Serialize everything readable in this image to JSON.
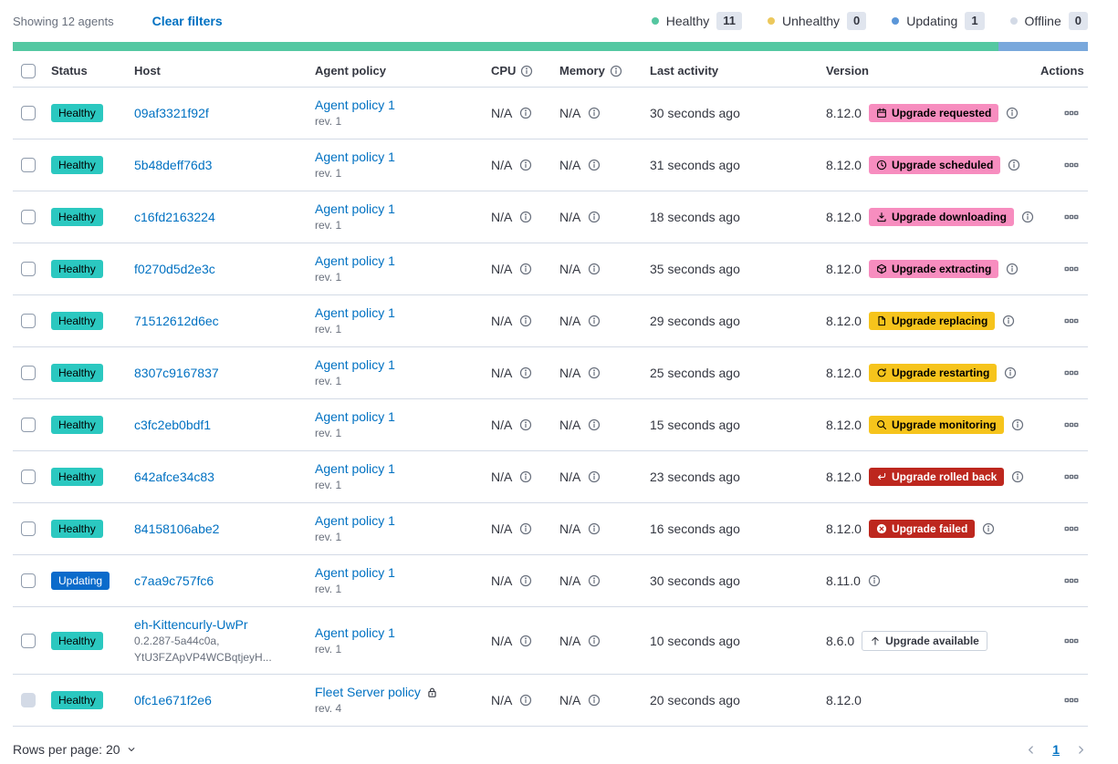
{
  "colors": {
    "link": "#0071C2",
    "text": "#343741",
    "subdued": "#69707D",
    "border": "#D3DAE6",
    "status": {
      "healthy": "#2BC8C0",
      "updating": "#0B6BCB"
    },
    "status_text": {
      "healthy": "#000000",
      "updating": "#FFFFFF"
    },
    "upgrade": {
      "pink": "#F78DBF",
      "yellow": "#F6C41C",
      "red": "#BD271E",
      "hollow": "#FFFFFF"
    },
    "upgrade_text": {
      "pink": "#000000",
      "yellow": "#000000",
      "red": "#FFFFFF",
      "hollow": "#343741"
    },
    "bar": {
      "healthy": "#54C8A2",
      "updating": "#79A8DC"
    },
    "dots": {
      "healthy": "#55C6A0",
      "unhealthy": "#ECC85C",
      "updating": "#5B96D8",
      "offline": "#D3DAE6"
    },
    "count_badge_bg": "#E0E5EE"
  },
  "toolbar": {
    "showing": "Showing 12 agents",
    "clear_filters": "Clear filters"
  },
  "legend": [
    {
      "label": "Healthy",
      "count": "11",
      "dot": "healthy"
    },
    {
      "label": "Unhealthy",
      "count": "0",
      "dot": "unhealthy"
    },
    {
      "label": "Updating",
      "count": "1",
      "dot": "updating"
    },
    {
      "label": "Offline",
      "count": "0",
      "dot": "offline"
    }
  ],
  "health_bar": [
    {
      "name": "healthy",
      "count": 11
    },
    {
      "name": "updating",
      "count": 1
    }
  ],
  "table": {
    "headers": {
      "status": "Status",
      "host": "Host",
      "policy": "Agent policy",
      "cpu": "CPU",
      "memory": "Memory",
      "last_activity": "Last activity",
      "version": "Version",
      "actions": "Actions"
    },
    "rows": [
      {
        "status": {
          "label": "Healthy",
          "type": "healthy"
        },
        "host": "09af3321f92f",
        "host_sub": [],
        "policy": "Agent policy 1",
        "rev": "rev. 1",
        "policy_locked": false,
        "cpu": "N/A",
        "memory": "N/A",
        "last_activity": "30 seconds ago",
        "version": "8.12.0",
        "upgrade": {
          "label": "Upgrade requested",
          "type": "pink",
          "icon": "calendar"
        },
        "upgrade_info": true,
        "version_info": false,
        "checkbox_disabled": false,
        "tall": false
      },
      {
        "status": {
          "label": "Healthy",
          "type": "healthy"
        },
        "host": "5b48deff76d3",
        "host_sub": [],
        "policy": "Agent policy 1",
        "rev": "rev. 1",
        "policy_locked": false,
        "cpu": "N/A",
        "memory": "N/A",
        "last_activity": "31 seconds ago",
        "version": "8.12.0",
        "upgrade": {
          "label": "Upgrade scheduled",
          "type": "pink",
          "icon": "clock"
        },
        "upgrade_info": true,
        "version_info": false,
        "checkbox_disabled": false,
        "tall": false
      },
      {
        "status": {
          "label": "Healthy",
          "type": "healthy"
        },
        "host": "c16fd2163224",
        "host_sub": [],
        "policy": "Agent policy 1",
        "rev": "rev. 1",
        "policy_locked": false,
        "cpu": "N/A",
        "memory": "N/A",
        "last_activity": "18 seconds ago",
        "version": "8.12.0",
        "upgrade": {
          "label": "Upgrade downloading",
          "type": "pink",
          "icon": "download"
        },
        "upgrade_info": true,
        "version_info": false,
        "checkbox_disabled": false,
        "tall": false
      },
      {
        "status": {
          "label": "Healthy",
          "type": "healthy"
        },
        "host": "f0270d5d2e3c",
        "host_sub": [],
        "policy": "Agent policy 1",
        "rev": "rev. 1",
        "policy_locked": false,
        "cpu": "N/A",
        "memory": "N/A",
        "last_activity": "35 seconds ago",
        "version": "8.12.0",
        "upgrade": {
          "label": "Upgrade extracting",
          "type": "pink",
          "icon": "package"
        },
        "upgrade_info": true,
        "version_info": false,
        "checkbox_disabled": false,
        "tall": false
      },
      {
        "status": {
          "label": "Healthy",
          "type": "healthy"
        },
        "host": "71512612d6ec",
        "host_sub": [],
        "policy": "Agent policy 1",
        "rev": "rev. 1",
        "policy_locked": false,
        "cpu": "N/A",
        "memory": "N/A",
        "last_activity": "29 seconds ago",
        "version": "8.12.0",
        "upgrade": {
          "label": "Upgrade replacing",
          "type": "yellow",
          "icon": "document"
        },
        "upgrade_info": true,
        "version_info": false,
        "checkbox_disabled": false,
        "tall": false
      },
      {
        "status": {
          "label": "Healthy",
          "type": "healthy"
        },
        "host": "8307c9167837",
        "host_sub": [],
        "policy": "Agent policy 1",
        "rev": "rev. 1",
        "policy_locked": false,
        "cpu": "N/A",
        "memory": "N/A",
        "last_activity": "25 seconds ago",
        "version": "8.12.0",
        "upgrade": {
          "label": "Upgrade restarting",
          "type": "yellow",
          "icon": "refresh"
        },
        "upgrade_info": true,
        "version_info": false,
        "checkbox_disabled": false,
        "tall": false
      },
      {
        "status": {
          "label": "Healthy",
          "type": "healthy"
        },
        "host": "c3fc2eb0bdf1",
        "host_sub": [],
        "policy": "Agent policy 1",
        "rev": "rev. 1",
        "policy_locked": false,
        "cpu": "N/A",
        "memory": "N/A",
        "last_activity": "15 seconds ago",
        "version": "8.12.0",
        "upgrade": {
          "label": "Upgrade monitoring",
          "type": "yellow",
          "icon": "inspect"
        },
        "upgrade_info": true,
        "version_info": false,
        "checkbox_disabled": false,
        "tall": false
      },
      {
        "status": {
          "label": "Healthy",
          "type": "healthy"
        },
        "host": "642afce34c83",
        "host_sub": [],
        "policy": "Agent policy 1",
        "rev": "rev. 1",
        "policy_locked": false,
        "cpu": "N/A",
        "memory": "N/A",
        "last_activity": "23 seconds ago",
        "version": "8.12.0",
        "upgrade": {
          "label": "Upgrade rolled back",
          "type": "red",
          "icon": "return"
        },
        "upgrade_info": true,
        "version_info": false,
        "checkbox_disabled": false,
        "tall": false
      },
      {
        "status": {
          "label": "Healthy",
          "type": "healthy"
        },
        "host": "84158106abe2",
        "host_sub": [],
        "policy": "Agent policy 1",
        "rev": "rev. 1",
        "policy_locked": false,
        "cpu": "N/A",
        "memory": "N/A",
        "last_activity": "16 seconds ago",
        "version": "8.12.0",
        "upgrade": {
          "label": "Upgrade failed",
          "type": "red",
          "icon": "cross"
        },
        "upgrade_info": true,
        "version_info": false,
        "checkbox_disabled": false,
        "tall": false
      },
      {
        "status": {
          "label": "Updating",
          "type": "updating"
        },
        "host": "c7aa9c757fc6",
        "host_sub": [],
        "policy": "Agent policy 1",
        "rev": "rev. 1",
        "policy_locked": false,
        "cpu": "N/A",
        "memory": "N/A",
        "last_activity": "30 seconds ago",
        "version": "8.11.0",
        "upgrade": null,
        "upgrade_info": false,
        "version_info": true,
        "checkbox_disabled": false,
        "tall": false
      },
      {
        "status": {
          "label": "Healthy",
          "type": "healthy"
        },
        "host": "eh-Kittencurly-UwPr",
        "host_sub": [
          "0.2.287-5a44c0a,",
          "YtU3FZApVP4WCBqtjeyH..."
        ],
        "policy": "Agent policy 1",
        "rev": "rev. 1",
        "policy_locked": false,
        "cpu": "N/A",
        "memory": "N/A",
        "last_activity": "10 seconds ago",
        "version": "8.6.0",
        "upgrade": {
          "label": "Upgrade available",
          "type": "hollow",
          "icon": "uparrow"
        },
        "upgrade_info": false,
        "version_info": false,
        "checkbox_disabled": false,
        "tall": true
      },
      {
        "status": {
          "label": "Healthy",
          "type": "healthy"
        },
        "host": "0fc1e671f2e6",
        "host_sub": [],
        "policy": "Fleet Server policy",
        "rev": "rev. 4",
        "policy_locked": true,
        "cpu": "N/A",
        "memory": "N/A",
        "last_activity": "20 seconds ago",
        "version": "8.12.0",
        "upgrade": null,
        "upgrade_info": false,
        "version_info": false,
        "checkbox_disabled": true,
        "tall": false
      }
    ]
  },
  "footer": {
    "rows_per_page": "Rows per page: 20",
    "page": "1"
  }
}
